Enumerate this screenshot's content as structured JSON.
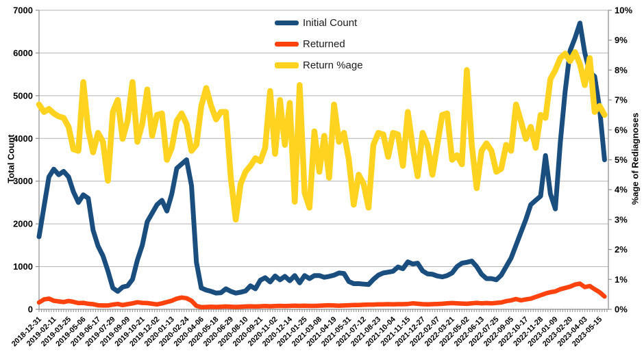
{
  "chart_data": {
    "type": "line",
    "title": "",
    "grid": "horizontal-only",
    "legend_position": "top-center",
    "x_label_every_n_weeks": 6,
    "x_total_weeks": 230,
    "x_tick_labels": [
      "2018-12-31",
      "2019-02-11",
      "2019-03-25",
      "2019-05-06",
      "2019-06-17",
      "2019-07-29",
      "2019-09-09",
      "2019-10-21",
      "2019-12-02",
      "2020-01-13",
      "2020-02-24",
      "2020-04-06",
      "2020-05-18",
      "2020-06-29",
      "2020-08-10",
      "2020-09-21",
      "2020-11-02",
      "2020-12-14",
      "2021-01-25",
      "2021-03-08",
      "2021-04-19",
      "2021-05-31",
      "2021-07-12",
      "2021-08-23",
      "2021-10-04",
      "2021-11-15",
      "2021-12-27",
      "2022-02-07",
      "2022-03-21",
      "2022-05-02",
      "2022-06-13",
      "2022-07-25",
      "2022-09-05",
      "2022-10-17",
      "2022-11-28",
      "2023-01-09",
      "2023-02-20",
      "2023-04-03",
      "2023-05-15"
    ],
    "left_axis": {
      "title": "Total Count",
      "min": 0,
      "max": 7000,
      "step": 1000,
      "tick_labels": [
        "7000",
        "6000",
        "5000",
        "4000",
        "3000",
        "2000",
        "1000",
        "0"
      ]
    },
    "right_axis": {
      "title": "%age of Rediagnoses",
      "min": 0,
      "max": 10,
      "step": 1,
      "tick_labels": [
        "10%",
        "9%",
        "8%",
        "7%",
        "6%",
        "5%",
        "4%",
        "3%",
        "2%",
        "1%",
        "0%"
      ]
    },
    "legend": [
      {
        "label": "Initial Count",
        "color": "#1a4e7e"
      },
      {
        "label": "Returned",
        "color": "#ff420e"
      },
      {
        "label": "Return %age",
        "color": "#ffd320"
      }
    ],
    "series": [
      {
        "name": "Initial Count",
        "axis": "left",
        "color": "#1a4e7e",
        "width": 7,
        "x_step_weeks": 2,
        "values": [
          1700,
          2400,
          3100,
          3280,
          3150,
          3230,
          3100,
          2750,
          2500,
          2680,
          2600,
          1850,
          1480,
          1250,
          900,
          500,
          420,
          520,
          550,
          700,
          1150,
          1500,
          2050,
          2250,
          2450,
          2550,
          2300,
          2700,
          3300,
          3400,
          3500,
          2900,
          1100,
          500,
          450,
          420,
          380,
          390,
          480,
          420,
          380,
          400,
          430,
          550,
          480,
          680,
          740,
          640,
          780,
          690,
          770,
          670,
          790,
          620,
          790,
          720,
          790,
          790,
          750,
          770,
          800,
          850,
          840,
          650,
          600,
          600,
          590,
          580,
          700,
          800,
          850,
          870,
          890,
          990,
          950,
          1110,
          1060,
          1080,
          900,
          830,
          820,
          780,
          760,
          790,
          850,
          1000,
          1080,
          1100,
          1130,
          1000,
          820,
          720,
          720,
          690,
          800,
          1000,
          1200,
          1500,
          1800,
          2100,
          2450,
          2550,
          2650,
          3600,
          2700,
          2350,
          3900,
          5100,
          6050,
          6350,
          6700,
          6000,
          5550,
          5450,
          4700,
          3500
        ]
      },
      {
        "name": "Returned",
        "axis": "left",
        "color": "#ff420e",
        "width": 6.5,
        "x_step_weeks": 2,
        "values": [
          160,
          230,
          250,
          200,
          185,
          170,
          195,
          175,
          145,
          150,
          130,
          120,
          95,
          90,
          90,
          110,
          125,
          100,
          120,
          140,
          165,
          150,
          145,
          130,
          115,
          140,
          170,
          200,
          250,
          275,
          260,
          200,
          80,
          50,
          55,
          60,
          55,
          60,
          65,
          60,
          55,
          60,
          65,
          70,
          65,
          70,
          75,
          70,
          75,
          80,
          75,
          80,
          85,
          80,
          85,
          80,
          80,
          85,
          90,
          95,
          90,
          85,
          90,
          95,
          100,
          100,
          105,
          110,
          110,
          115,
          115,
          120,
          115,
          120,
          120,
          125,
          140,
          130,
          120,
          115,
          120,
          125,
          130,
          140,
          145,
          140,
          135,
          130,
          140,
          150,
          140,
          145,
          140,
          150,
          160,
          190,
          210,
          240,
          210,
          230,
          250,
          290,
          330,
          370,
          400,
          420,
          470,
          500,
          530,
          580,
          600,
          520,
          545,
          470,
          400,
          300
        ]
      },
      {
        "name": "Return %age",
        "axis": "right",
        "color": "#ffd320",
        "width": 8.5,
        "x_step_weeks": 2,
        "values": [
          6.85,
          6.6,
          6.7,
          6.55,
          6.45,
          6.4,
          6.1,
          5.35,
          5.3,
          7.6,
          6.0,
          5.25,
          5.9,
          5.6,
          4.3,
          6.6,
          7.0,
          5.7,
          6.3,
          7.6,
          5.6,
          6.2,
          7.35,
          5.8,
          6.5,
          6.55,
          5.0,
          5.4,
          6.3,
          6.55,
          6.2,
          5.3,
          5.5,
          6.8,
          7.4,
          6.8,
          6.35,
          6.6,
          6.6,
          4.4,
          3.0,
          4.2,
          4.6,
          4.8,
          5.05,
          4.95,
          5.4,
          7.3,
          5.2,
          7.0,
          5.5,
          6.9,
          3.6,
          7.5,
          3.9,
          3.4,
          5.95,
          4.6,
          5.8,
          4.4,
          6.85,
          5.6,
          5.9,
          5.0,
          3.5,
          4.5,
          4.2,
          3.4,
          5.5,
          5.9,
          5.85,
          5.1,
          5.9,
          5.85,
          4.8,
          6.6,
          5.4,
          4.45,
          5.9,
          5.5,
          4.5,
          5.5,
          6.5,
          6.55,
          5.0,
          5.15,
          4.85,
          8.0,
          5.5,
          4.05,
          5.3,
          5.55,
          5.3,
          4.6,
          4.7,
          5.5,
          5.3,
          6.85,
          6.3,
          5.7,
          6.1,
          5.4,
          6.5,
          6.4,
          7.7,
          8.0,
          8.4,
          8.55,
          8.3,
          8.6,
          8.2,
          7.5,
          8.4,
          6.6,
          6.8,
          6.5
        ]
      }
    ]
  }
}
